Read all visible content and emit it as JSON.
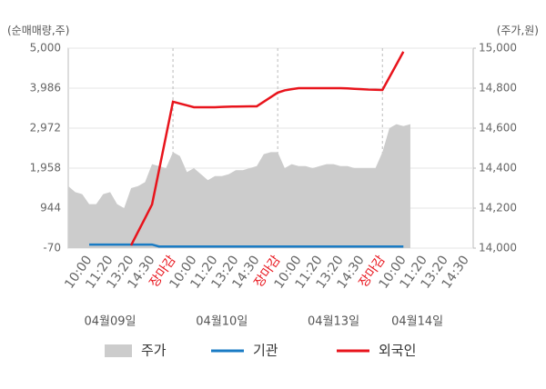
{
  "chart_data": {
    "type": "line",
    "y_axis_label": "(순매매량,주)",
    "y2_axis_label": "(주가,원)",
    "categories": [
      null,
      null,
      null,
      "10:00",
      null,
      null,
      "11:20",
      null,
      null,
      "13:20",
      null,
      null,
      "14:30",
      null,
      null,
      "장마감",
      null,
      null,
      "10:00",
      null,
      null,
      "11:20",
      null,
      null,
      "13:20",
      null,
      null,
      "14:30",
      null,
      null,
      "장마감",
      null,
      null,
      "10:00",
      null,
      null,
      "11:20",
      null,
      null,
      "13:20",
      null,
      null,
      "14:30",
      null,
      null,
      "장마감",
      null,
      null,
      "10:00",
      null,
      null,
      "11:20",
      null,
      null,
      "13:20",
      null,
      null,
      "14:30"
    ],
    "dates": [
      "04월09일",
      "04월10일",
      "04월13일",
      "04월14일"
    ],
    "ylim": [
      -70,
      5000
    ],
    "yticks": [
      {
        "value": -70,
        "label": "-70"
      },
      944,
      {
        "value": 1958,
        "label": "1,958"
      },
      {
        "value": 2972,
        "label": "2,972"
      },
      {
        "value": 3986,
        "label": "3,986"
      },
      {
        "value": 5000,
        "label": "5,000"
      }
    ],
    "y2lim": [
      14000,
      15000
    ],
    "y2ticks": [
      {
        "value": 14000,
        "label": "14,000"
      },
      {
        "value": 14200,
        "label": "14,200"
      },
      {
        "value": 14400,
        "label": "14,400"
      },
      {
        "value": 14600,
        "label": "14,600"
      },
      {
        "value": 14800,
        "label": "14,800"
      },
      {
        "value": 15000,
        "label": "15,000"
      }
    ],
    "grid": true,
    "series": [
      {
        "name": "주가",
        "color": "#cccccc",
        "axis": "y2",
        "style": "area",
        "values": [
          14310,
          14280,
          14270,
          14220,
          14220,
          14270,
          14280,
          14220,
          14200,
          14300,
          14310,
          14330,
          14420,
          14410,
          14400,
          14480,
          14460,
          14380,
          14400,
          14370,
          14340,
          14360,
          14360,
          14370,
          14390,
          14390,
          14400,
          14410,
          14470,
          14480,
          14480,
          14400,
          14420,
          14410,
          14410,
          14400,
          14410,
          14420,
          14420,
          14410,
          14410,
          14400,
          14400,
          14400,
          14400,
          14480,
          14600,
          14620,
          14610,
          14620,
          null,
          null,
          null,
          null,
          null,
          null,
          null,
          null
        ]
      },
      {
        "name": "기관",
        "color": "#1a7bc4",
        "axis": "y",
        "values": [
          null,
          null,
          null,
          20,
          20,
          20,
          20,
          20,
          20,
          20,
          20,
          20,
          20,
          -30,
          -30,
          -30,
          -30,
          -30,
          -30,
          -30,
          -30,
          -30,
          -30,
          -30,
          -30,
          -30,
          -30,
          -30,
          -30,
          -30,
          -30,
          -30,
          -30,
          -30,
          -30,
          -30,
          -30,
          -30,
          -30,
          -30,
          -30,
          -30,
          -30,
          -30,
          -30,
          -30,
          -30,
          -30,
          -30,
          null,
          null,
          null,
          null,
          null,
          null,
          null,
          null,
          null
        ]
      },
      {
        "name": "외국인",
        "color": "#e8141c",
        "axis": "y",
        "values": [
          null,
          null,
          null,
          null,
          null,
          null,
          null,
          null,
          null,
          0,
          345,
          690,
          1036,
          1904,
          2772,
          3641,
          3595,
          3549,
          3503,
          3503,
          3503,
          3503,
          3510,
          3517,
          3520,
          3523,
          3526,
          3526,
          3641,
          3757,
          3872,
          3930,
          3960,
          3987,
          3987,
          3987,
          3987,
          3987,
          3987,
          3987,
          3980,
          3970,
          3960,
          3950,
          3945,
          3940,
          4263,
          4586,
          4910,
          null,
          null,
          null,
          null,
          null,
          null,
          null,
          null,
          null
        ]
      }
    ]
  }
}
